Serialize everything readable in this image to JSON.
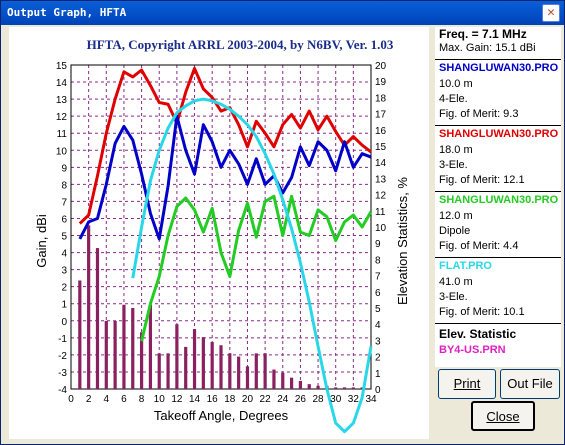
{
  "window": {
    "title": "Output Graph, HFTA",
    "close_symbol": "✕"
  },
  "chart_data": {
    "type": "line",
    "title": "HFTA, Copyright ARRL 2003-2004, by N6BV, Ver. 1.03",
    "xlabel": "Takeoff Angle, Degrees",
    "ylabel": "Gain, dBi",
    "y2label": "Elevation Statistics, %",
    "xlim": [
      0,
      34
    ],
    "ylim": [
      -4,
      15
    ],
    "y2lim": [
      0,
      20
    ],
    "x_ticks": [
      0,
      2,
      4,
      6,
      8,
      10,
      12,
      14,
      16,
      18,
      20,
      22,
      24,
      26,
      28,
      30,
      32,
      34
    ],
    "y_ticks": [
      -4,
      -3,
      -2,
      -1,
      0,
      1,
      2,
      3,
      4,
      5,
      6,
      7,
      8,
      9,
      10,
      11,
      12,
      13,
      14,
      15
    ],
    "y2_ticks": [
      0,
      1,
      2,
      3,
      4,
      5,
      6,
      7,
      8,
      9,
      10,
      11,
      12,
      13,
      14,
      15,
      16,
      17,
      18,
      19,
      20
    ],
    "grid": true,
    "series": [
      {
        "name": "SHANGLUWAN30.PRO",
        "axis": "gain",
        "color": "#e00000",
        "x": [
          1,
          2,
          3,
          4,
          5,
          6,
          7,
          8,
          9,
          10,
          11,
          12,
          13,
          14,
          15,
          16,
          17,
          18,
          19,
          20,
          21,
          22,
          23,
          24,
          25,
          26,
          27,
          28,
          29,
          30,
          31,
          32,
          33,
          34
        ],
        "y": [
          5.7,
          6.2,
          8.5,
          11.0,
          13.0,
          14.6,
          14.3,
          14.7,
          13.8,
          12.8,
          12.7,
          11.6,
          13.4,
          14.8,
          13.6,
          13.1,
          12.3,
          12.5,
          11.5,
          10.2,
          11.7,
          11.0,
          10.2,
          11.5,
          12.1,
          11.3,
          12.3,
          11.2,
          12.0,
          11.1,
          10.3,
          10.8,
          10.3,
          9.9
        ]
      },
      {
        "name": "SHANGLUWAN30.PRO",
        "axis": "gain",
        "color": "#0000c8",
        "x": [
          1,
          2,
          3,
          4,
          5,
          6,
          7,
          8,
          9,
          10,
          11,
          12,
          13,
          14,
          15,
          16,
          17,
          18,
          19,
          20,
          21,
          22,
          23,
          24,
          25,
          26,
          27,
          28,
          29,
          30,
          31,
          32,
          33,
          34
        ],
        "y": [
          4.8,
          5.8,
          6.0,
          8.0,
          10.4,
          11.4,
          10.6,
          8.6,
          6.3,
          4.8,
          7.9,
          12.0,
          10.0,
          8.6,
          11.5,
          10.5,
          9.0,
          10.0,
          9.2,
          8.0,
          9.5,
          8.0,
          8.5,
          7.5,
          8.4,
          10.2,
          9.1,
          10.5,
          10.0,
          8.8,
          10.5,
          9.0,
          9.8,
          9.6
        ]
      },
      {
        "name": "SHANGLUWAN30.PRO",
        "axis": "gain",
        "color": "#22cc22",
        "x": [
          8,
          9,
          10,
          11,
          12,
          13,
          14,
          15,
          16,
          17,
          18,
          19,
          20,
          21,
          22,
          23,
          24,
          25,
          26,
          27,
          28,
          29,
          30,
          31,
          32,
          33,
          34
        ],
        "y": [
          -1.2,
          1.0,
          2.6,
          5.0,
          6.7,
          7.2,
          6.5,
          5.2,
          6.6,
          4.0,
          2.6,
          5.3,
          6.9,
          4.9,
          7.0,
          7.3,
          5.0,
          7.3,
          5.2,
          5.0,
          6.5,
          6.1,
          4.7,
          5.8,
          6.2,
          5.5,
          6.4
        ]
      },
      {
        "name": "FLAT.PRO",
        "axis": "gain",
        "color": "#28d8e8",
        "x": [
          7,
          8,
          9,
          10,
          11,
          12,
          13,
          14,
          15,
          16,
          17,
          18,
          19,
          20,
          21,
          22,
          23,
          24,
          25,
          26,
          27,
          28,
          29,
          30,
          31,
          32,
          33,
          34
        ],
        "y": [
          2.5,
          5.5,
          8.2,
          10.0,
          11.3,
          12.2,
          12.6,
          12.9,
          13.0,
          12.9,
          12.7,
          12.4,
          12.0,
          11.5,
          10.8,
          9.8,
          8.6,
          7.1,
          5.4,
          3.4,
          1.1,
          -1.5,
          -4.0,
          -6.0,
          -6.5,
          -6.0,
          -4.5,
          -1.5
        ]
      },
      {
        "name": "BY4-US.PRN",
        "axis": "elevation",
        "type": "bar",
        "color": "#8b2060",
        "x": [
          1,
          2,
          3,
          4,
          5,
          6,
          7,
          8,
          9,
          10,
          11,
          12,
          13,
          14,
          15,
          16,
          17,
          18,
          19,
          20,
          21,
          22,
          23,
          24,
          25,
          26,
          27,
          28,
          29,
          30,
          31,
          32,
          33
        ],
        "y": [
          6.7,
          10.1,
          8.7,
          4.2,
          4.2,
          5.2,
          5.0,
          3.5,
          5.2,
          2.2,
          2.2,
          4.0,
          2.6,
          3.7,
          3.2,
          2.9,
          2.7,
          2.2,
          2.0,
          1.4,
          2.2,
          2.2,
          1.2,
          1.0,
          0.7,
          0.5,
          0.3,
          0.2,
          0.2,
          0.1,
          0.1,
          0.1,
          0.1
        ]
      }
    ]
  },
  "side": {
    "freq": "Freq. = 7.1 MHz",
    "max_gain": "Max. Gain: 15.1 dBi",
    "blocks": [
      {
        "name": "SHANGLUWAN30.PRO",
        "color": "#0000c8",
        "height": "10.0 m",
        "type": "4-Ele.",
        "fom": "Fig. of Merit:  9.3"
      },
      {
        "name": "SHANGLUWAN30.PRO",
        "color": "#e00000",
        "height": "18.0 m",
        "type": "3-Ele.",
        "fom": "Fig. of Merit:  12.1"
      },
      {
        "name": "SHANGLUWAN30.PRO",
        "color": "#22cc22",
        "height": "12.0 m",
        "type": "Dipole",
        "fom": "Fig. of Merit:  4.4"
      },
      {
        "name": "FLAT.PRO",
        "color": "#28d8e8",
        "height": "41.0 m",
        "type": "3-Ele.",
        "fom": "Fig. of Merit:  10.1"
      }
    ],
    "elev_title": "Elev. Statistic",
    "elev_file": "BY4-US.PRN",
    "elev_color": "#e020c0"
  },
  "buttons": {
    "print": "Print",
    "out_file": "Out File",
    "close": "Close"
  }
}
